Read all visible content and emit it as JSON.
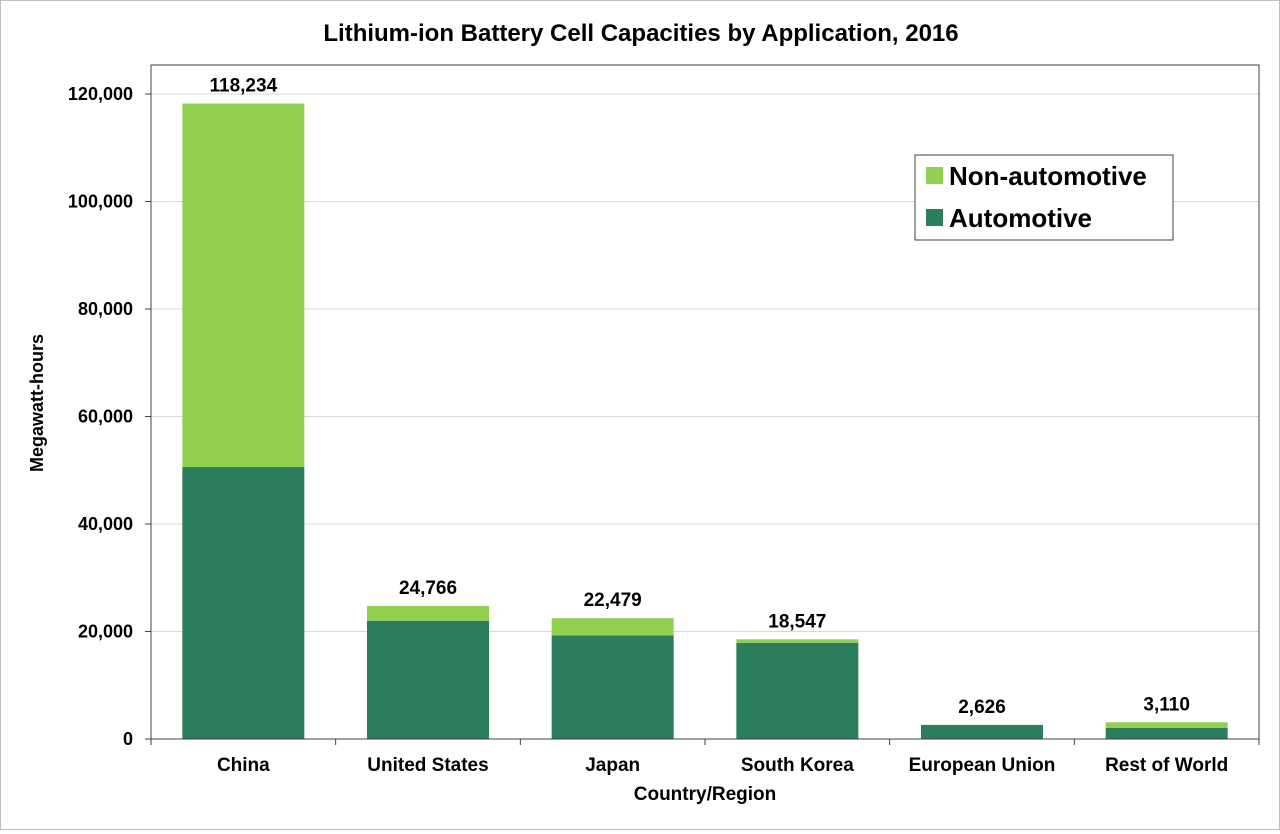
{
  "colors": {
    "automotive": "#2a7e5e",
    "non_automotive": "#92d050",
    "gridline": "#d9d9d9",
    "plot_border": "#404040",
    "text": "#000000"
  },
  "chart_data": {
    "type": "bar",
    "stacked": true,
    "title": "Lithium-ion Battery Cell Capacities by Application, 2016",
    "xlabel": "Country/Region",
    "ylabel": "Megawatt-hours",
    "ylim": [
      0,
      120000
    ],
    "yticks": [
      0,
      20000,
      40000,
      60000,
      80000,
      100000,
      120000
    ],
    "ytick_labels": [
      "0",
      "20,000",
      "40,000",
      "60,000",
      "80,000",
      "100,000",
      "120,000"
    ],
    "grid": true,
    "legend_position": "top-right",
    "legend": [
      "Non-automotive",
      "Automotive"
    ],
    "categories": [
      "China",
      "United States",
      "Japan",
      "South Korea",
      "European Union",
      "Rest of World"
    ],
    "series": [
      {
        "name": "Automotive",
        "color": "#2a7e5e",
        "values": [
          50600,
          22000,
          19300,
          17900,
          2626,
          2100
        ]
      },
      {
        "name": "Non-automotive",
        "color": "#92d050",
        "values": [
          67634,
          2766,
          3179,
          647,
          0,
          1010
        ]
      }
    ],
    "totals": [
      118234,
      24766,
      22479,
      18547,
      2626,
      3110
    ],
    "total_labels": [
      "118,234",
      "24,766",
      "22,479",
      "18,547",
      "2,626",
      "3,110"
    ]
  }
}
